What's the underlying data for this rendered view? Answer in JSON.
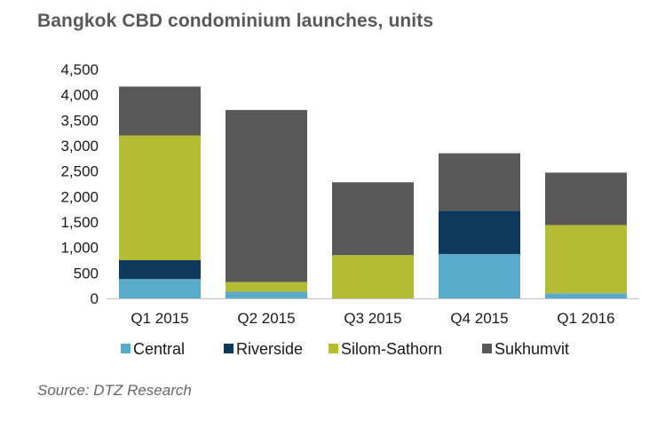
{
  "chart_data": {
    "type": "bar",
    "stacked": true,
    "title": "Bangkok CBD condominium launches, units",
    "source": "Source: DTZ Research",
    "categories": [
      "Q1 2015",
      "Q2 2015",
      "Q3 2015",
      "Q4 2015",
      "Q1 2016"
    ],
    "ylim": [
      0,
      4500
    ],
    "yticks": [
      0,
      500,
      1000,
      1500,
      2000,
      2500,
      3000,
      3500,
      4000,
      4500
    ],
    "ytick_labels": [
      "0",
      "500",
      "1,000",
      "1,500",
      "2,000",
      "2,500",
      "3,000",
      "3,500",
      "4,000",
      "4,500"
    ],
    "grid": false,
    "legend_position": "bottom",
    "series": [
      {
        "name": "Central",
        "color": "#5aaac9",
        "values": [
          380,
          130,
          0,
          870,
          100
        ]
      },
      {
        "name": "Riverside",
        "color": "#0d3a5c",
        "values": [
          370,
          0,
          0,
          850,
          0
        ]
      },
      {
        "name": "Silom-Sathorn",
        "color": "#b4bd33",
        "values": [
          2450,
          190,
          850,
          0,
          1340
        ]
      },
      {
        "name": "Sukhumvit",
        "color": "#595959",
        "values": [
          960,
          3380,
          1430,
          1130,
          1030
        ]
      }
    ]
  }
}
